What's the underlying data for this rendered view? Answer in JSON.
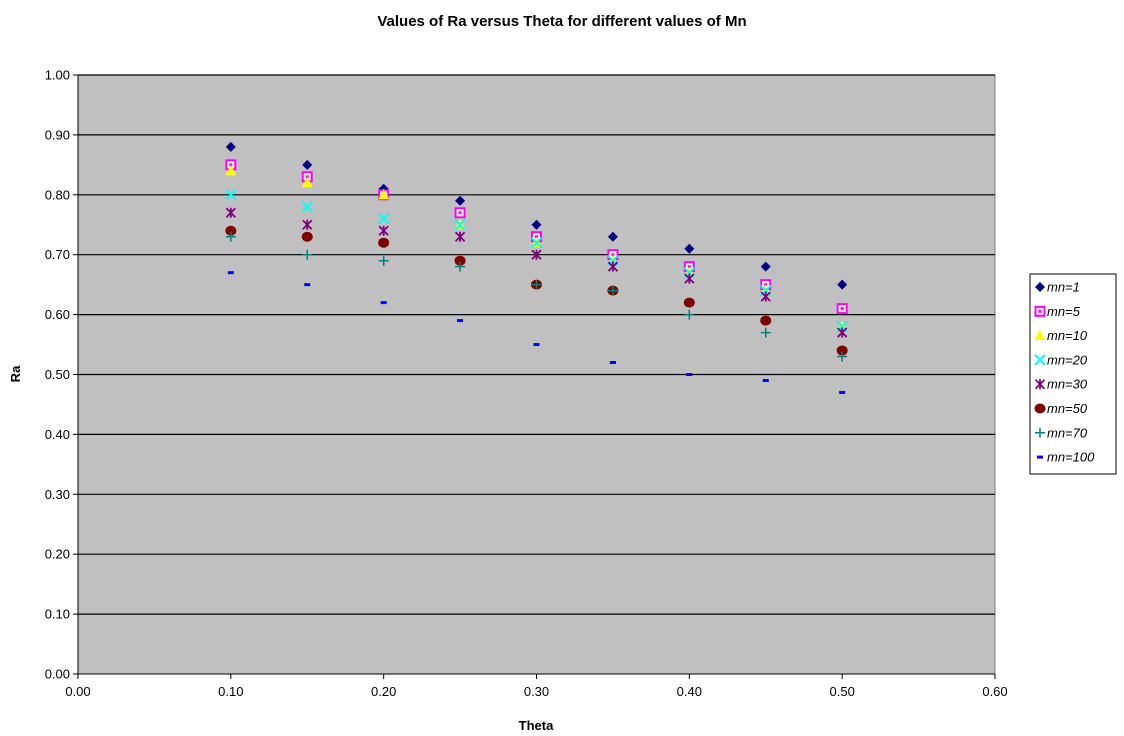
{
  "chart_data": {
    "type": "scatter",
    "title": "Values of Ra versus Theta for different values of Mn",
    "xlabel": "Theta",
    "ylabel": "Ra",
    "xlim": [
      0,
      0.6
    ],
    "ylim": [
      0,
      1.0
    ],
    "x_ticks": [
      "0.00",
      "0.10",
      "0.20",
      "0.30",
      "0.40",
      "0.50",
      "0.60"
    ],
    "y_ticks": [
      "0.00",
      "0.10",
      "0.20",
      "0.30",
      "0.40",
      "0.50",
      "0.60",
      "0.70",
      "0.80",
      "0.90",
      "1.00"
    ],
    "grid": "horizontal",
    "legend_position": "right",
    "plot_background": "#c0c0c0",
    "x": [
      0.1,
      0.15,
      0.2,
      0.25,
      0.3,
      0.35,
      0.4,
      0.45,
      0.5
    ],
    "series": [
      {
        "name": "mn=1",
        "marker": "diamond",
        "color": "#000080",
        "values": [
          0.88,
          0.85,
          0.81,
          0.79,
          0.75,
          0.73,
          0.71,
          0.68,
          0.65
        ]
      },
      {
        "name": "mn=5",
        "marker": "square",
        "color": "#ff00ff",
        "values": [
          0.85,
          0.83,
          0.8,
          0.77,
          0.73,
          0.7,
          0.68,
          0.65,
          0.61
        ]
      },
      {
        "name": "mn=10",
        "marker": "triangle",
        "color": "#ffff00",
        "values": [
          0.84,
          0.82,
          0.8,
          0.75,
          0.72,
          0.69,
          0.67,
          0.64,
          0.58
        ]
      },
      {
        "name": "mn=20",
        "marker": "x",
        "color": "#00ffff",
        "values": [
          0.8,
          0.78,
          0.76,
          0.75,
          0.72,
          0.69,
          0.67,
          0.64,
          0.58
        ]
      },
      {
        "name": "mn=30",
        "marker": "star",
        "color": "#800080",
        "values": [
          0.77,
          0.75,
          0.74,
          0.73,
          0.7,
          0.68,
          0.66,
          0.63,
          0.57
        ]
      },
      {
        "name": "mn=50",
        "marker": "circle",
        "color": "#800000",
        "values": [
          0.74,
          0.73,
          0.72,
          0.69,
          0.65,
          0.64,
          0.62,
          0.59,
          0.54
        ]
      },
      {
        "name": "mn=70",
        "marker": "plus",
        "color": "#008080",
        "values": [
          0.73,
          0.7,
          0.69,
          0.68,
          0.65,
          0.64,
          0.6,
          0.57,
          0.53
        ]
      },
      {
        "name": "mn=100",
        "marker": "dash",
        "color": "#0000ff",
        "values": [
          0.67,
          0.65,
          0.62,
          0.59,
          0.55,
          0.52,
          0.5,
          0.49,
          0.47
        ]
      }
    ]
  }
}
